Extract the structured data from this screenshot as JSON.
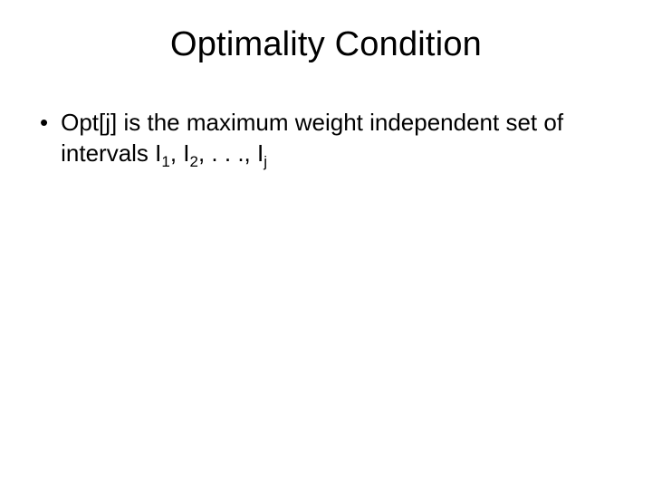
{
  "slide": {
    "title": "Optimality Condition",
    "bullet": {
      "lead": "Opt[j] is the maximum weight independent set of intervals I",
      "sub1": "1",
      "sep1": ", I",
      "sub2": "2",
      "sep2": ", . . ., I",
      "sub3": "j"
    }
  },
  "style": {
    "background_color": "#ffffff",
    "text_color": "#000000",
    "title_fontsize": 38,
    "body_fontsize": 26,
    "sub_fontsize": 17,
    "font_family": "Arial"
  }
}
